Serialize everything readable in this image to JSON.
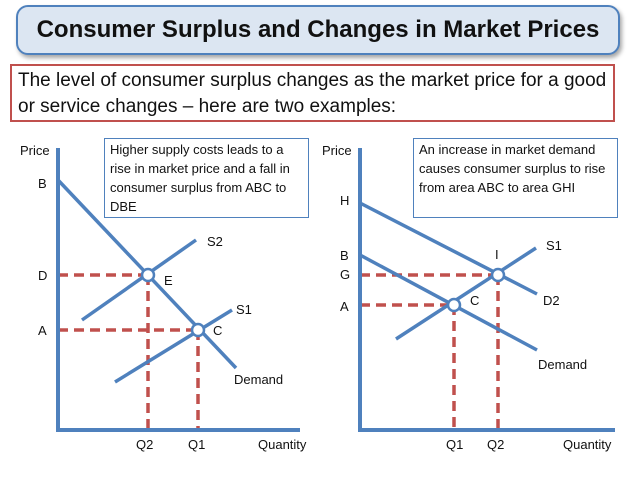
{
  "title": "Consumer Surplus and Changes in Market Prices",
  "intro": "The level of consumer surplus changes as the market price for a good or service changes – here are two examples:",
  "left": {
    "note": "Higher supply costs leads to a rise in market price and a fall in consumer surplus from ABC to DBE",
    "axis_y": "Price",
    "axis_x": "Quantity",
    "labels": {
      "B": "B",
      "D": "D",
      "A": "A",
      "E": "E",
      "C": "C",
      "S2": "S2",
      "S1": "S1",
      "demand": "Demand",
      "Q2": "Q2",
      "Q1": "Q1"
    }
  },
  "right": {
    "note": "An increase in market demand causes consumer surplus to rise from area ABC to area GHI",
    "axis_y": "Price",
    "axis_x": "Quantity",
    "labels": {
      "H": "H",
      "B": "B",
      "G": "G",
      "A": "A",
      "I": "I",
      "C": "C",
      "S1": "S1",
      "D2": "D2",
      "demand": "Demand",
      "Q1": "Q1",
      "Q2": "Q2"
    }
  },
  "colors": {
    "curve": "#4f81bd",
    "guide": "#c0504d",
    "title_fill": "#dce6f2"
  }
}
